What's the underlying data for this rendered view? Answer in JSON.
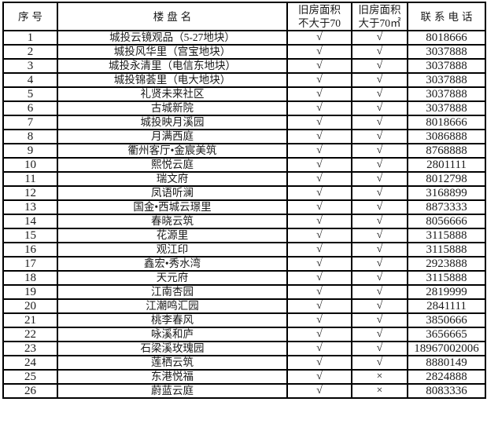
{
  "table": {
    "headers": {
      "index": "序号",
      "name": "楼盘名",
      "le70_line1": "旧房面积",
      "le70_line2": "不大于70",
      "gt70_line1": "旧房面积",
      "gt70_line2": "大于70㎡",
      "phone": "联系电话"
    },
    "rows": [
      {
        "index": "1",
        "name": "城投云镜观品（5-27地块）",
        "le70": "√",
        "gt70": "√",
        "phone": "8018666"
      },
      {
        "index": "2",
        "name": "城投风华里（宫宝地块）",
        "le70": "√",
        "gt70": "√",
        "phone": "3037888"
      },
      {
        "index": "3",
        "name": "城投永清里（电信东地块）",
        "le70": "√",
        "gt70": "√",
        "phone": "3037888"
      },
      {
        "index": "4",
        "name": "城投锦荟里（电大地块）",
        "le70": "√",
        "gt70": "√",
        "phone": "3037888"
      },
      {
        "index": "5",
        "name": "礼贤未来社区",
        "le70": "√",
        "gt70": "√",
        "phone": "3037888"
      },
      {
        "index": "6",
        "name": "古城新院",
        "le70": "√",
        "gt70": "√",
        "phone": "3037888"
      },
      {
        "index": "7",
        "name": "城投映月溪园",
        "le70": "√",
        "gt70": "√",
        "phone": "8018666"
      },
      {
        "index": "8",
        "name": "月满西庭",
        "le70": "√",
        "gt70": "√",
        "phone": "3086888"
      },
      {
        "index": "9",
        "name": "衢州客厅•金宸美筑",
        "le70": "√",
        "gt70": "√",
        "phone": "8768888"
      },
      {
        "index": "10",
        "name": "熙悦云庭",
        "le70": "√",
        "gt70": "√",
        "phone": "2801111"
      },
      {
        "index": "11",
        "name": "瑞文府",
        "le70": "√",
        "gt70": "√",
        "phone": "8012798"
      },
      {
        "index": "12",
        "name": "凤语听澜",
        "le70": "√",
        "gt70": "√",
        "phone": "3168899"
      },
      {
        "index": "13",
        "name": "国金•西城云璟里",
        "le70": "√",
        "gt70": "√",
        "phone": "8873333"
      },
      {
        "index": "14",
        "name": "春晓云筑",
        "le70": "√",
        "gt70": "√",
        "phone": "8056666"
      },
      {
        "index": "15",
        "name": "花源里",
        "le70": "√",
        "gt70": "√",
        "phone": "3115888"
      },
      {
        "index": "16",
        "name": "观江印",
        "le70": "√",
        "gt70": "√",
        "phone": "3115888"
      },
      {
        "index": "17",
        "name": "鑫宏•秀水湾",
        "le70": "√",
        "gt70": "√",
        "phone": "2923888"
      },
      {
        "index": "18",
        "name": "天元府",
        "le70": "√",
        "gt70": "√",
        "phone": "3115888"
      },
      {
        "index": "19",
        "name": "江南杏园",
        "le70": "√",
        "gt70": "√",
        "phone": "2819999"
      },
      {
        "index": "20",
        "name": "江潮鸣汇园",
        "le70": "√",
        "gt70": "√",
        "phone": "2841111"
      },
      {
        "index": "21",
        "name": "桃李春风",
        "le70": "√",
        "gt70": "√",
        "phone": "3850666"
      },
      {
        "index": "22",
        "name": "咏溪和庐",
        "le70": "√",
        "gt70": "√",
        "phone": "3656665"
      },
      {
        "index": "23",
        "name": "石梁溪玫瑰园",
        "le70": "√",
        "gt70": "√",
        "phone": "18967002006"
      },
      {
        "index": "24",
        "name": "莲栖云筑",
        "le70": "√",
        "gt70": "√",
        "phone": "8880149"
      },
      {
        "index": "25",
        "name": "东港悦福",
        "le70": "√",
        "gt70": "×",
        "phone": "2824888"
      },
      {
        "index": "26",
        "name": "蔚蓝云庭",
        "le70": "√",
        "gt70": "×",
        "phone": "8083336"
      }
    ]
  }
}
